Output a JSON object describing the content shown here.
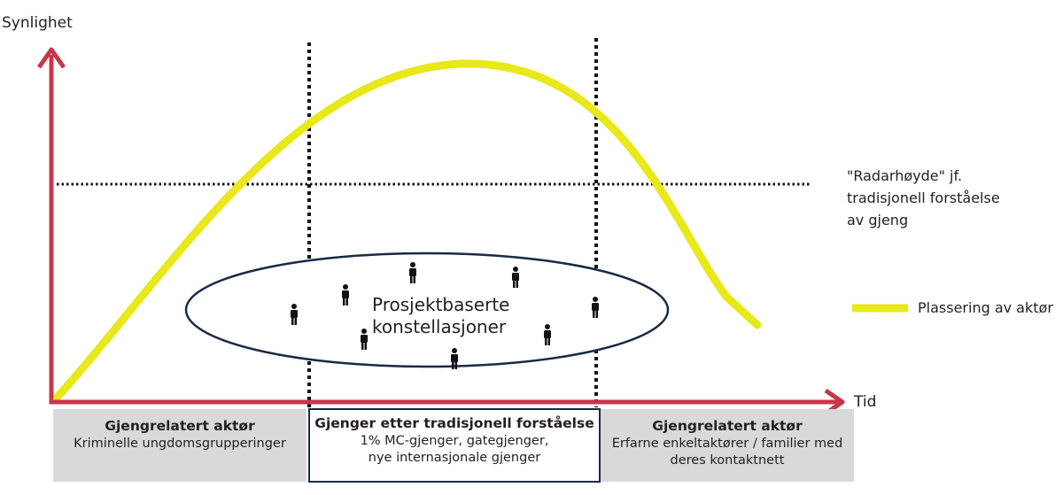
{
  "axes": {
    "y_label": "Synlighet",
    "x_label": "Tid"
  },
  "radar_line_label": "\"Radarhøyde\" jf. tradisjonell forståelse av gjeng",
  "legend": {
    "label": "Plassering av aktør",
    "color": "#e8e81a"
  },
  "ellipse": {
    "label_line1": "Prosjektbaserte",
    "label_line2": "konstellasjoner",
    "icon": "person-icon"
  },
  "boxes": [
    {
      "title": "Gjengrelatert aktør",
      "lines": [
        "Kriminelle ungdomsgrupperinger"
      ]
    },
    {
      "title": "Gjenger etter tradisjonell forståelse",
      "lines": [
        "1% MC-gjenger, gategjenger,",
        "nye internasjonale gjenger"
      ]
    },
    {
      "title": "Gjengrelatert aktør",
      "lines": [
        "Erfarne enkeltaktører / familier med",
        "deres kontaktnett"
      ]
    }
  ],
  "colors": {
    "axis": "#c8364a",
    "curve": "#e8e81a",
    "outline": "#1a2a44"
  }
}
